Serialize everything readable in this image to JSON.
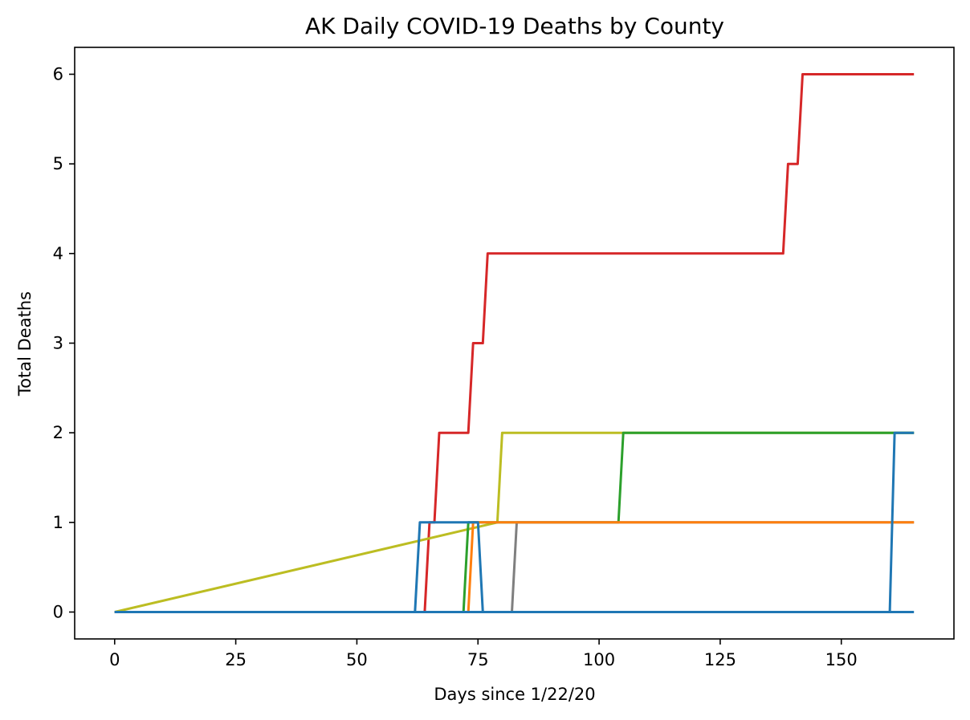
{
  "chart_data": {
    "type": "line",
    "title": "AK Daily COVID-19 Deaths by County",
    "xlabel": "Days since 1/22/20",
    "ylabel": "Total Deaths",
    "xlim": [
      -8.25,
      173.25
    ],
    "ylim": [
      -0.3,
      6.3
    ],
    "xticks": [
      0,
      25,
      50,
      75,
      100,
      125,
      150
    ],
    "yticks": [
      0,
      1,
      2,
      3,
      4,
      5,
      6
    ],
    "grid": false,
    "series": [
      {
        "color": "#d62728",
        "points": [
          [
            0,
            0
          ],
          [
            64,
            0
          ],
          [
            65,
            1
          ],
          [
            66,
            1
          ],
          [
            67,
            2
          ],
          [
            73,
            2
          ],
          [
            74,
            3
          ],
          [
            76,
            3
          ],
          [
            77,
            4
          ],
          [
            138,
            4
          ],
          [
            139,
            5
          ],
          [
            141,
            5
          ],
          [
            142,
            6
          ],
          [
            165,
            6
          ]
        ]
      },
      {
        "color": "#bcbd22",
        "points": [
          [
            0,
            0
          ],
          [
            79,
            1
          ],
          [
            80,
            2
          ],
          [
            165,
            2
          ]
        ]
      },
      {
        "color": "#2ca02c",
        "points": [
          [
            0,
            0
          ],
          [
            72,
            0
          ],
          [
            73,
            1
          ],
          [
            104,
            1
          ],
          [
            105,
            2
          ],
          [
            165,
            2
          ]
        ]
      },
      {
        "color": "#7f7f7f",
        "points": [
          [
            0,
            0
          ],
          [
            82,
            0
          ],
          [
            83,
            1
          ],
          [
            165,
            1
          ]
        ]
      },
      {
        "color": "#ff7f0e",
        "points": [
          [
            0,
            0
          ],
          [
            73,
            0
          ],
          [
            74,
            1
          ],
          [
            165,
            1
          ]
        ]
      },
      {
        "color": "#1f77b4",
        "points": [
          [
            0,
            0
          ],
          [
            62,
            0
          ],
          [
            63,
            1
          ],
          [
            75,
            1
          ],
          [
            76,
            0
          ],
          [
            165,
            0
          ]
        ]
      },
      {
        "color": "#1f77b4",
        "points": [
          [
            0,
            0
          ],
          [
            160,
            0
          ],
          [
            161,
            2
          ],
          [
            165,
            2
          ]
        ]
      }
    ]
  }
}
